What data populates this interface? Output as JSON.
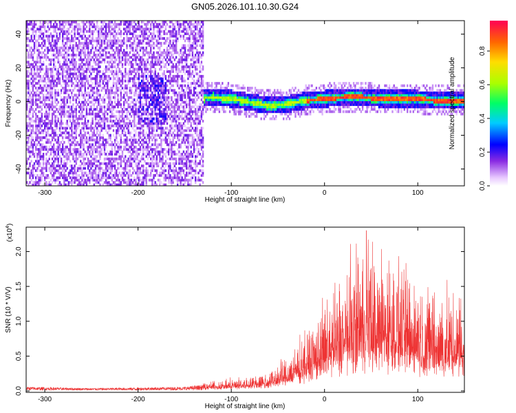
{
  "title": "GN05.2026.101.10.30.G24",
  "chart_data": [
    {
      "type": "heatmap",
      "xlabel": "Height of straight line (km)",
      "ylabel": "Frequency (Hz)",
      "xlim": [
        -320,
        150
      ],
      "ylim": [
        -50,
        48
      ],
      "x_ticks": [
        -300,
        -200,
        -100,
        0,
        100
      ],
      "y_ticks": [
        -40,
        -20,
        0,
        20,
        40
      ],
      "colorbar": {
        "label": "Normalized spectral amplitude",
        "range": [
          0,
          0.98
        ],
        "ticks": [
          0.0,
          0.2,
          0.4,
          0.6,
          0.8
        ],
        "tick_labels": [
          "0.0",
          "0.2",
          "0.4",
          "0.6",
          "0.8"
        ]
      },
      "ridge": [
        [
          -180,
          0
        ],
        [
          -140,
          1
        ],
        [
          -120,
          2
        ],
        [
          -100,
          1
        ],
        [
          -80,
          -1
        ],
        [
          -60,
          -3
        ],
        [
          -40,
          -2
        ],
        [
          -20,
          0
        ],
        [
          0,
          1
        ],
        [
          20,
          2
        ],
        [
          40,
          2
        ],
        [
          60,
          1
        ],
        [
          80,
          1
        ],
        [
          100,
          1
        ],
        [
          120,
          0
        ],
        [
          150,
          0
        ]
      ]
    },
    {
      "type": "line",
      "xlabel": "Height of straight line (km)",
      "ylabel": "SNR (10 * V/V)",
      "scale_label": "(x10",
      "scale_exp": "4",
      "scale_close": ")",
      "xlim": [
        -320,
        150
      ],
      "ylim": [
        -0.02,
        2.35
      ],
      "x_ticks": [
        -300,
        -200,
        -100,
        0,
        100
      ],
      "y_ticks": [
        0.0,
        0.5,
        1.0,
        1.5,
        2.0
      ],
      "y_tick_labels": [
        "0.0",
        "0.5",
        "1.0",
        "1.5",
        "2.0"
      ],
      "color": "#ee3333",
      "envelope": [
        [
          -320,
          0.05
        ],
        [
          -250,
          0.03
        ],
        [
          -200,
          0.04
        ],
        [
          -150,
          0.05
        ],
        [
          -130,
          0.08
        ],
        [
          -100,
          0.12
        ],
        [
          -80,
          0.15
        ],
        [
          -60,
          0.2
        ],
        [
          -40,
          0.35
        ],
        [
          -25,
          0.55
        ],
        [
          -10,
          0.75
        ],
        [
          0,
          0.9
        ],
        [
          10,
          1.05
        ],
        [
          20,
          1.2
        ],
        [
          40,
          1.45
        ],
        [
          55,
          1.4
        ],
        [
          80,
          1.3
        ],
        [
          100,
          1.2
        ],
        [
          120,
          1.0
        ],
        [
          150,
          0.95
        ]
      ],
      "peak": [
        45,
        2.3
      ]
    }
  ]
}
